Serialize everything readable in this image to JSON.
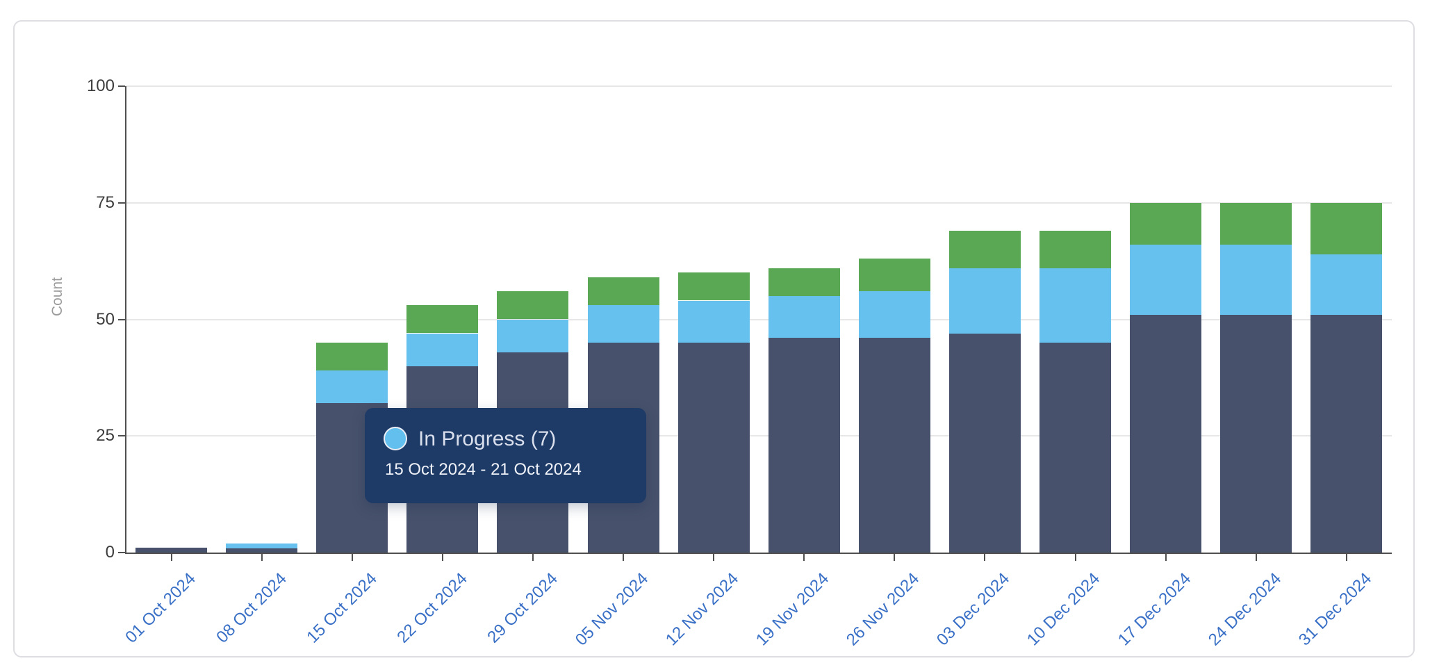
{
  "chart_data": {
    "type": "bar",
    "stacked": true,
    "title": "",
    "xlabel": "",
    "ylabel": "Count",
    "ylim": [
      0,
      100
    ],
    "yticks": [
      0,
      25,
      50,
      75,
      100
    ],
    "grid": true,
    "legend_position": "none",
    "categories": [
      "01 Oct 2024",
      "08 Oct 2024",
      "15 Oct 2024",
      "22 Oct 2024",
      "29 Oct 2024",
      "05 Nov 2024",
      "12 Nov 2024",
      "19 Nov 2024",
      "26 Nov 2024",
      "03 Dec 2024",
      "10 Dec 2024",
      "17 Dec 2024",
      "24 Dec 2024",
      "31 Dec 2024"
    ],
    "series": [
      {
        "name": null,
        "color": "#47516b",
        "values": [
          1,
          1,
          32,
          40,
          43,
          45,
          45,
          46,
          46,
          47,
          45,
          51,
          51,
          51
        ]
      },
      {
        "name": "In Progress",
        "color": "#67c1ee",
        "values": [
          0,
          1,
          7,
          7,
          7,
          8,
          9,
          9,
          10,
          14,
          16,
          15,
          15,
          13
        ]
      },
      {
        "name": null,
        "color": "#5ba854",
        "values": [
          0,
          0,
          6,
          6,
          6,
          6,
          6,
          6,
          7,
          8,
          8,
          9,
          9,
          11
        ]
      }
    ],
    "totals": [
      1,
      2,
      45,
      53,
      56,
      59,
      60,
      61,
      63,
      69,
      69,
      75,
      75,
      75
    ]
  },
  "tooltip": {
    "title": "In Progress (7)",
    "series_label": "In Progress",
    "value": 7,
    "date_range": "15 Oct 2024 - 21 Oct 2024",
    "background": "#1e3a66",
    "marker_color": "#63c0ee"
  },
  "colors": {
    "axis": "#4f4f4f",
    "grid": "#e7e7e7",
    "y_tick_label": "#3d3d3d",
    "x_tick_label": "#3a70c6",
    "card_border": "#dddde2"
  }
}
